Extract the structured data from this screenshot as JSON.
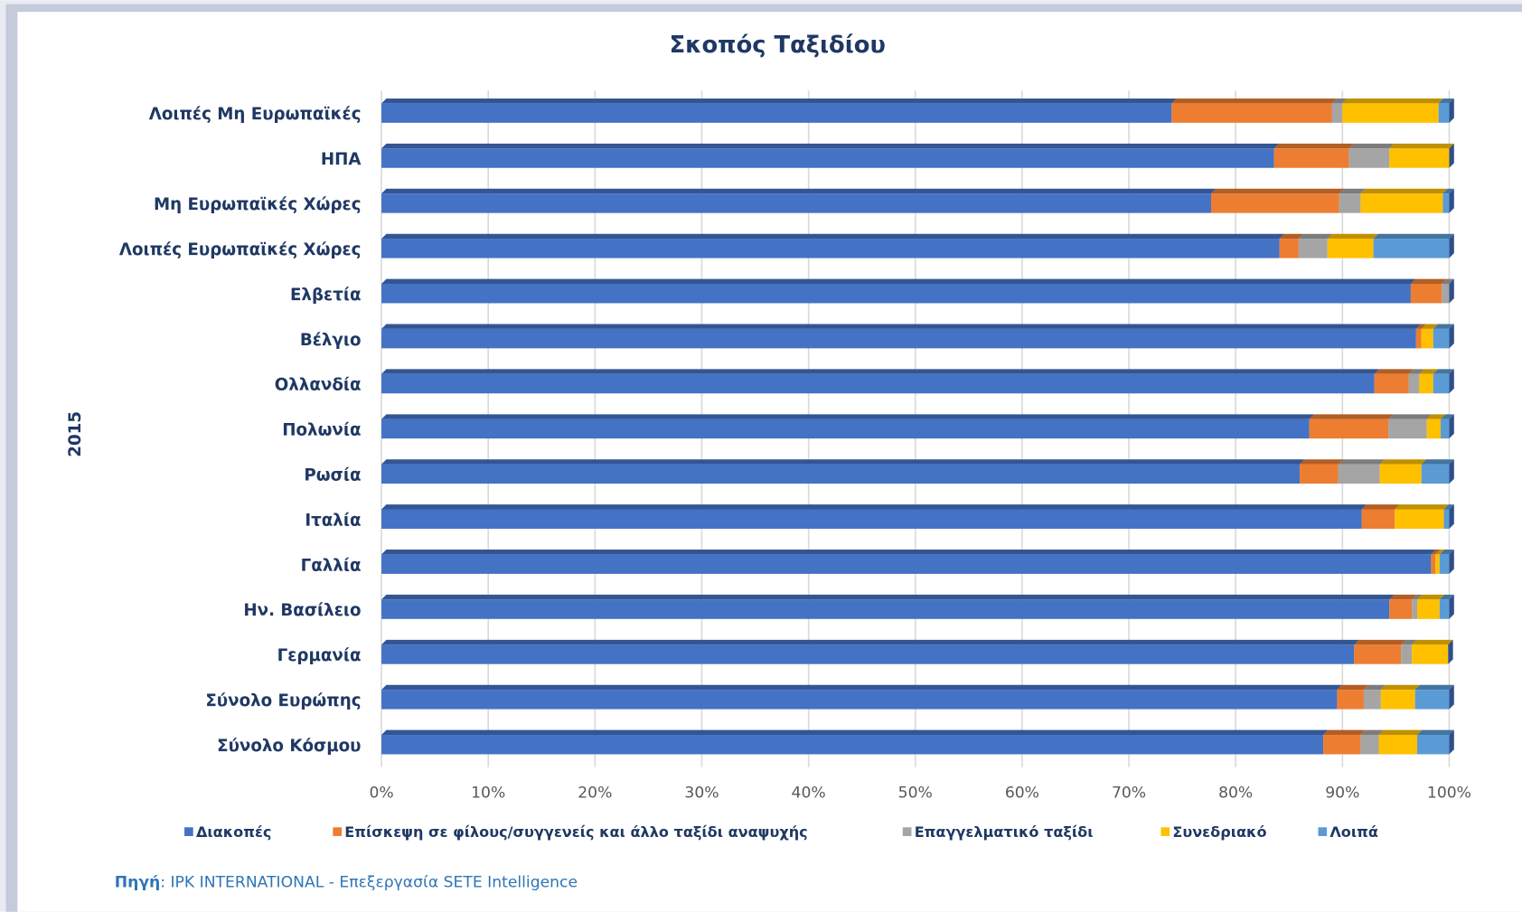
{
  "chart_data": {
    "type": "stacked_barh",
    "title": "Σκοπός Ταξιδίου",
    "ylabel": "2015",
    "categories": [
      "Λοιπές Μη Ευρωπαϊκές",
      "ΗΠΑ",
      "Μη Ευρωπαϊκές Χώρες",
      "Λοιπές Ευρωπαϊκές Χώρες",
      "Ελβετία",
      "Βέλγιο",
      "Ολλανδία",
      "Πολωνία",
      "Ρωσία",
      "Ιταλία",
      "Γαλλία",
      "Ην. Βασίλειο",
      "Γερμανία",
      "Σύνολο Ευρώπης",
      "Σύνολο Κόσμου"
    ],
    "series": [
      {
        "name": "Διακοπές",
        "color": "#4472c4",
        "values": [
          74,
          83.6,
          77.7,
          84.1,
          96.4,
          96.9,
          93,
          86.9,
          86,
          91.8,
          98.3,
          94.4,
          91.1,
          89.5,
          88.2
        ]
      },
      {
        "name": "Επίσκεψη σε φίλους/συγγενείς και άλλο ταξίδι αναψυχής",
        "color": "#ed7d31",
        "values": [
          15,
          7,
          12,
          1.8,
          2.9,
          0.5,
          3.2,
          7.4,
          3.6,
          3.1,
          0.4,
          2.1,
          4.4,
          2.5,
          3.5
        ]
      },
      {
        "name": "Επαγγελματικό ταξίδι",
        "color": "#a5a5a5",
        "values": [
          1,
          3.8,
          2,
          2.7,
          0.7,
          0,
          1,
          3.6,
          3.9,
          0,
          0,
          0.5,
          1,
          1.6,
          1.7
        ]
      },
      {
        "name": "Συνεδριακό",
        "color": "#ffc000",
        "values": [
          9,
          5.6,
          7.7,
          4.3,
          0,
          1.1,
          1.3,
          1.3,
          3.9,
          4.6,
          0.4,
          2.1,
          3.4,
          3.2,
          3.6
        ]
      },
      {
        "name": "Λοιπά",
        "color": "#5b9bd5",
        "values": [
          1,
          0,
          0.6,
          7.1,
          0,
          1.5,
          1.5,
          0.8,
          2.6,
          0.5,
          0.9,
          0.9,
          0,
          3.2,
          3
        ]
      }
    ],
    "xlim": [
      0,
      100
    ],
    "xticks": [
      {
        "value": 0,
        "label": "0%"
      },
      {
        "value": 10,
        "label": "10%"
      },
      {
        "value": 20,
        "label": "20%"
      },
      {
        "value": 30,
        "label": "30%"
      },
      {
        "value": 40,
        "label": "40%"
      },
      {
        "value": 50,
        "label": "50%"
      },
      {
        "value": 60,
        "label": "60%"
      },
      {
        "value": 70,
        "label": "70%"
      },
      {
        "value": 80,
        "label": "80%"
      },
      {
        "value": 90,
        "label": "90%"
      },
      {
        "value": 100,
        "label": "100%"
      }
    ],
    "grid": true,
    "legend": "bottom",
    "source": {
      "label": "Πηγή",
      "text": ": IPK INTERNATIONAL - Επεξεργασία SETE Intelligence"
    }
  }
}
